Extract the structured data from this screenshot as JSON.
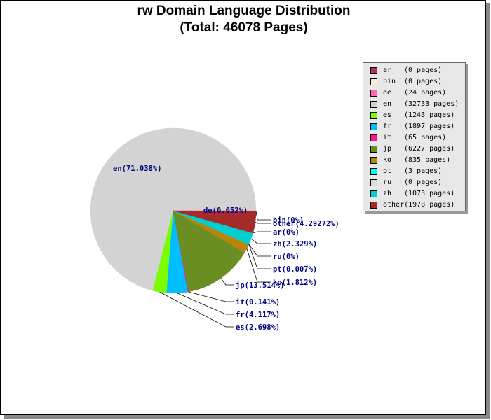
{
  "title_line1": "rw Domain Language Distribution",
  "title_line2": "(Total: 46078 Pages)",
  "chart_data": {
    "type": "pie",
    "title": "rw Domain Language Distribution (Total: 46078 Pages)",
    "total_pages": 46078,
    "slices": [
      {
        "code": "ar",
        "pages": 0,
        "legend_text": "(0 pages)",
        "label": "ar(0%)",
        "color": "#b03060"
      },
      {
        "code": "bin",
        "pages": 0,
        "legend_text": "(0 pages)",
        "label": "bin(0%)",
        "color": "#fde9d9"
      },
      {
        "code": "de",
        "pages": 24,
        "legend_text": "(24 pages)",
        "label": "de(0.052%)",
        "color": "#ff69b4"
      },
      {
        "code": "en",
        "pages": 32733,
        "legend_text": "(32733 pages)",
        "label": "en(71.038%)",
        "color": "#d3d3d3"
      },
      {
        "code": "es",
        "pages": 1243,
        "legend_text": "(1243 pages)",
        "label": "es(2.698%)",
        "color": "#7cfc00"
      },
      {
        "code": "fr",
        "pages": 1897,
        "legend_text": "(1897 pages)",
        "label": "fr(4.117%)",
        "color": "#00bfff"
      },
      {
        "code": "it",
        "pages": 65,
        "legend_text": "(65 pages)",
        "label": "it(0.141%)",
        "color": "#ff1493"
      },
      {
        "code": "jp",
        "pages": 6227,
        "legend_text": "(6227 pages)",
        "label": "jp(13.514%)",
        "color": "#6b8e23"
      },
      {
        "code": "ko",
        "pages": 835,
        "legend_text": "(835 pages)",
        "label": "ko(1.812%)",
        "color": "#b8860b"
      },
      {
        "code": "pt",
        "pages": 3,
        "legend_text": "(3 pages)",
        "label": "pt(0.007%)",
        "color": "#00ffff"
      },
      {
        "code": "ru",
        "pages": 0,
        "legend_text": "(0 pages)",
        "label": "ru(0%)",
        "color": "#dcdcdc"
      },
      {
        "code": "zh",
        "pages": 1073,
        "legend_text": "(1073 pages)",
        "label": "zh(2.329%)",
        "color": "#00ced1"
      },
      {
        "code": "other",
        "pages": 1978,
        "legend_text": "(1978 pages)",
        "label": "other(4.29272%)",
        "color": "#a52a2a"
      }
    ],
    "legend_placement": "right"
  }
}
